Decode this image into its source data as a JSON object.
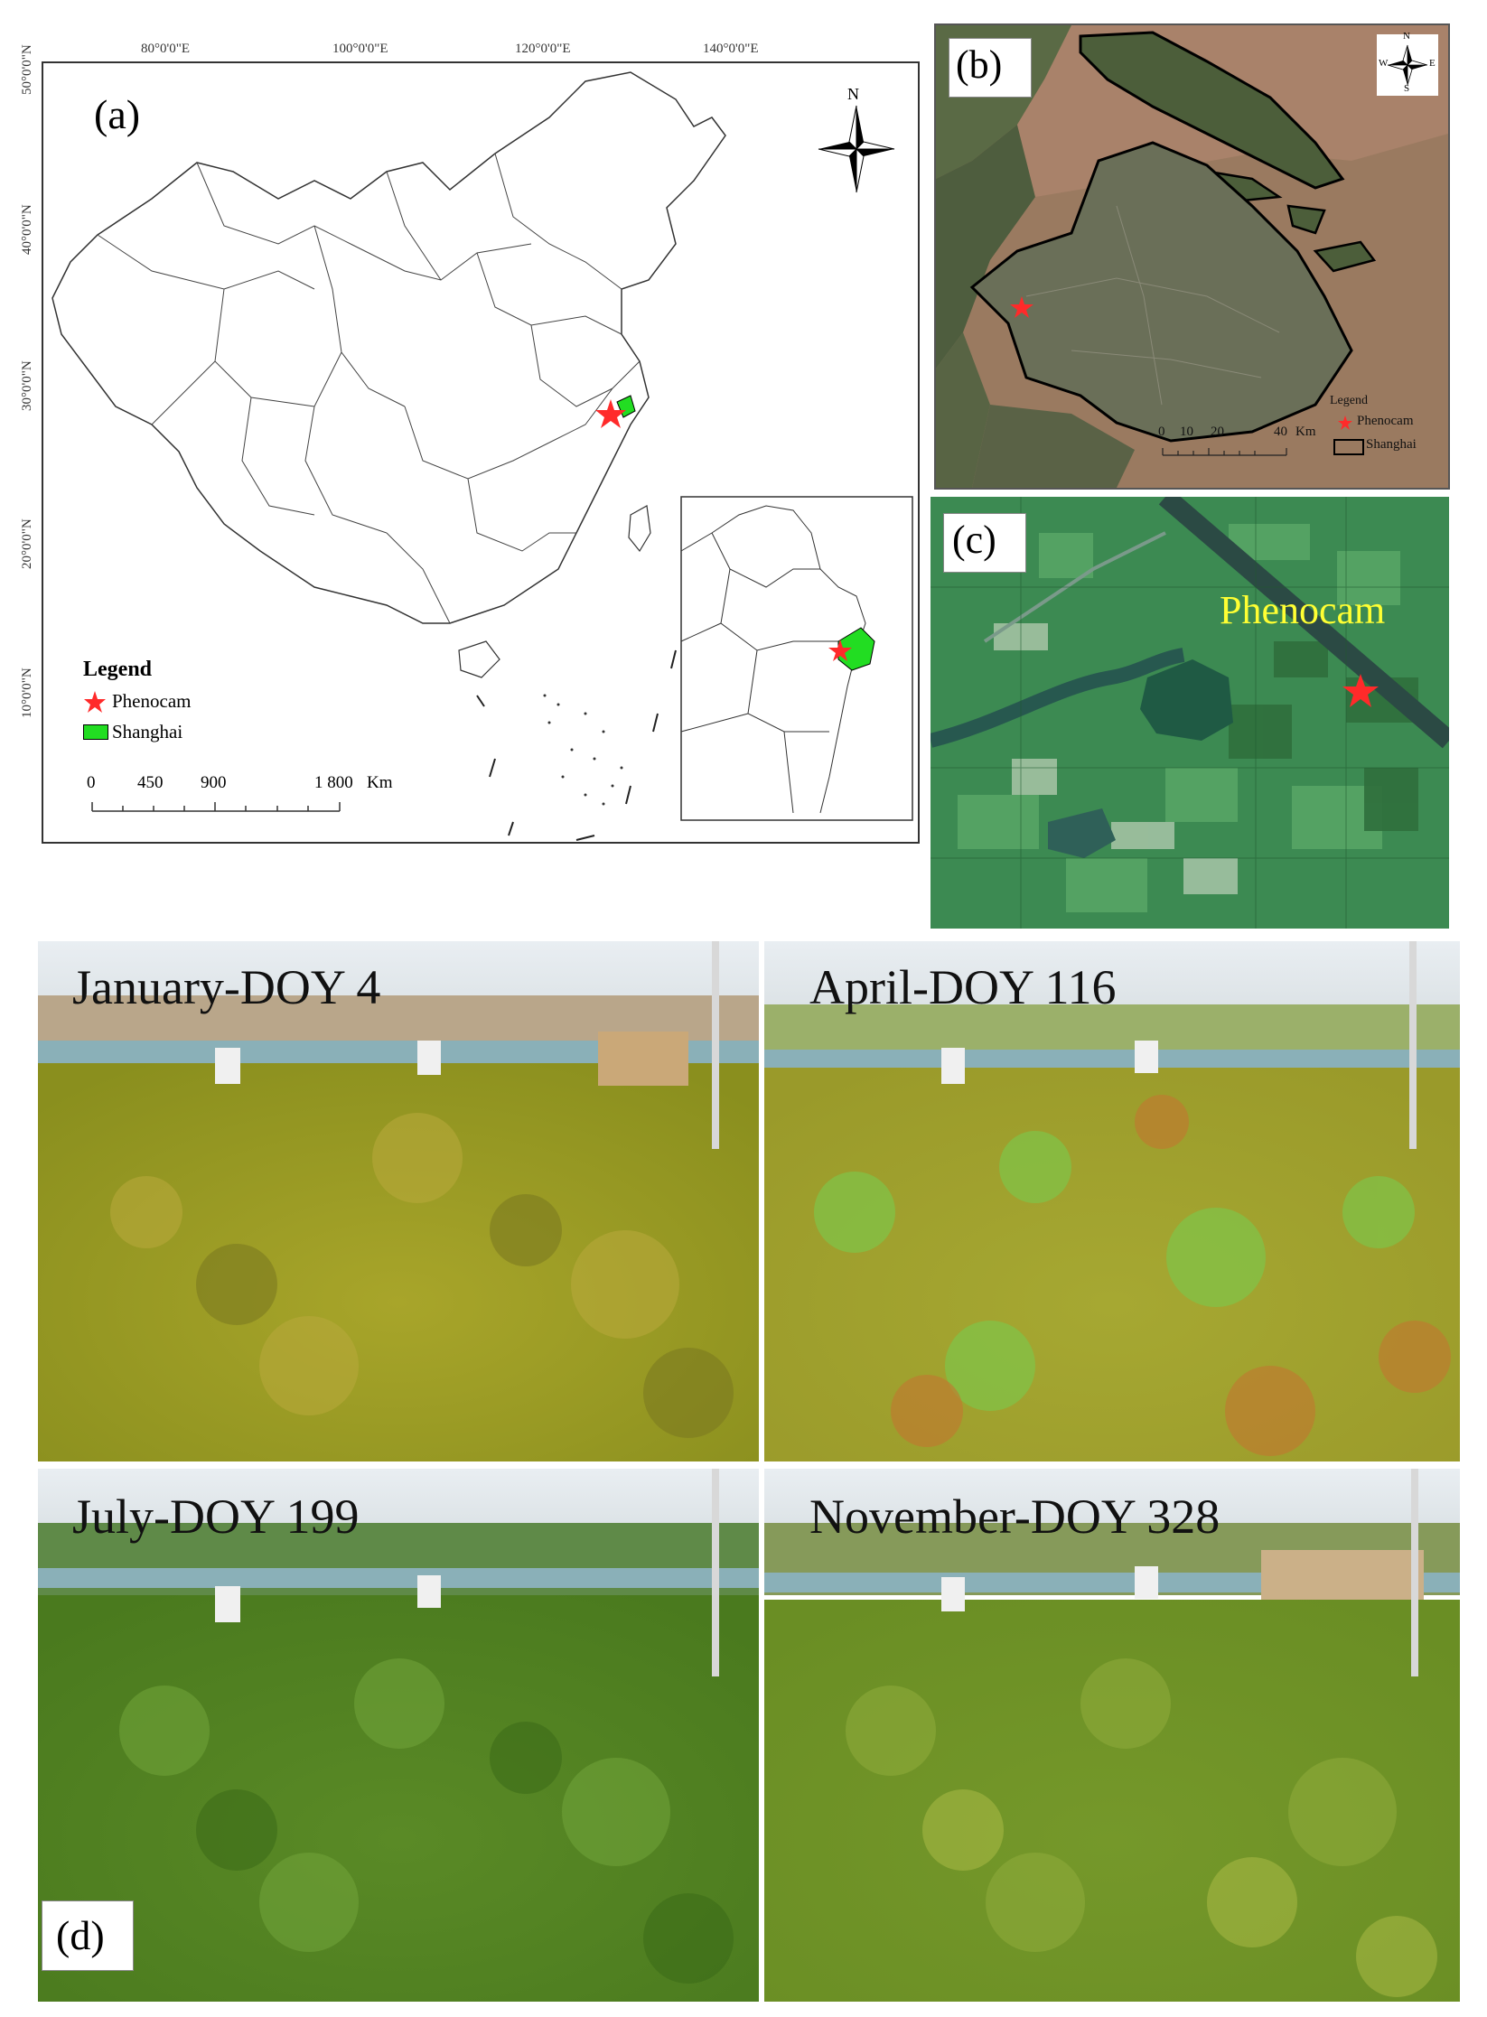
{
  "panel_a": {
    "letter": "(a)",
    "lon_labels": [
      "80°0'0\"E",
      "100°0'0\"E",
      "120°0'0\"E",
      "140°0'0\"E"
    ],
    "lat_labels": [
      "50°0'0\"N",
      "40°0'0\"N",
      "30°0'0\"N",
      "20°0'0\"N",
      "10°0'0\"N"
    ],
    "north_label": "N",
    "legend": {
      "title": "Legend",
      "items": [
        {
          "label": "Phenocam",
          "symbol": "star",
          "color": "#ff2a2a"
        },
        {
          "label": "Shanghai",
          "symbol": "polygon",
          "color": "#22dd22"
        }
      ]
    },
    "scale": {
      "ticks": [
        "0",
        "450",
        "900",
        "1 800"
      ],
      "unit": "Km"
    }
  },
  "panel_b": {
    "letter": "(b)",
    "compass": {
      "n": "N",
      "s": "S",
      "e": "E",
      "w": "W"
    },
    "legend": {
      "title": "Legend",
      "items": [
        {
          "label": "Phenocam",
          "symbol": "star",
          "color": "#ff2a2a"
        },
        {
          "label": "Shanghai",
          "symbol": "outline",
          "color": "#000000"
        }
      ]
    },
    "scale": {
      "ticks": [
        "0",
        "10",
        "20",
        "40"
      ],
      "unit": "Km"
    }
  },
  "panel_c": {
    "letter": "(c)",
    "site_label": "Phenocam",
    "site_label_color": "#ffff33"
  },
  "panel_d": {
    "letter": "(d)",
    "photos": [
      {
        "label": "January-DOY 4"
      },
      {
        "label": "April-DOY 116"
      },
      {
        "label": "July-DOY 199"
      },
      {
        "label": "November-DOY 328"
      }
    ]
  },
  "colors": {
    "phenocam_star": "#ff2a2a",
    "shanghai_fill": "#22dd22",
    "phenocam_text": "#ffff33"
  }
}
